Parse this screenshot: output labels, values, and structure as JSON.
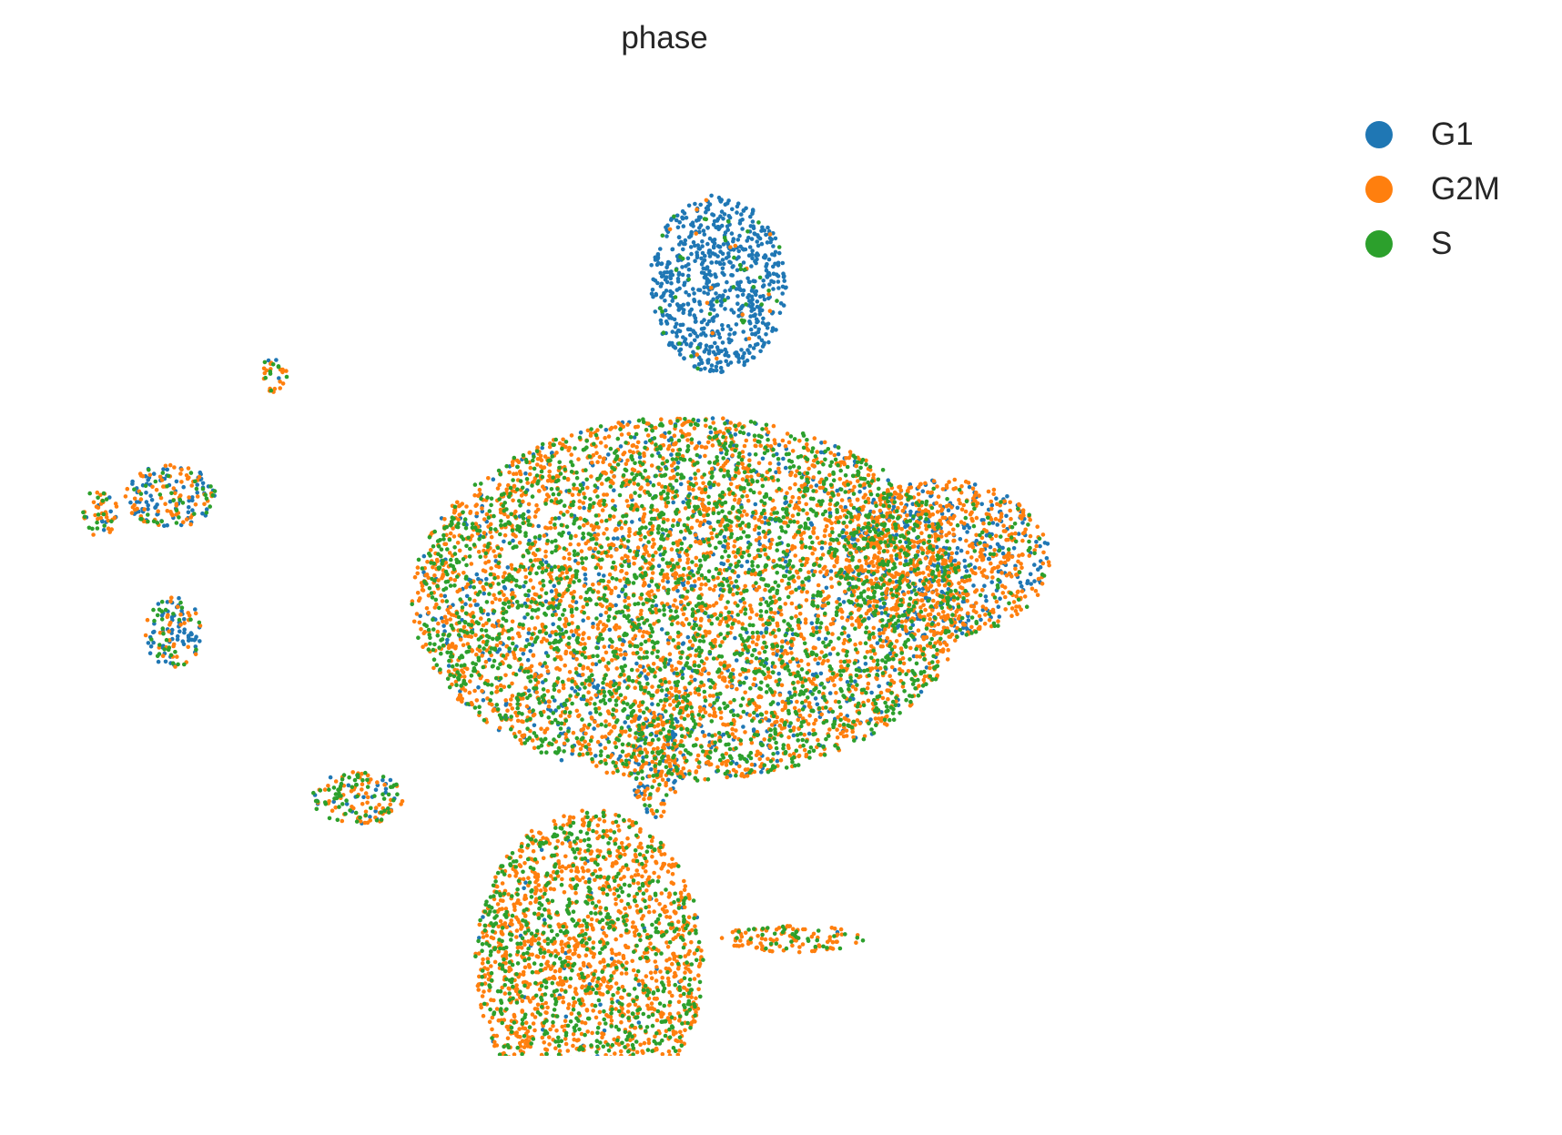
{
  "chart_data": {
    "type": "scatter",
    "title": "phase",
    "xlabel": "",
    "ylabel": "",
    "axes_visible": false,
    "grid": false,
    "legend_position": "top-right",
    "xlim": [
      0,
      1000
    ],
    "ylim": [
      0,
      640
    ],
    "series": [
      {
        "name": "G1",
        "color": "#1f77b4"
      },
      {
        "name": "G2M",
        "color": "#ff7f0e"
      },
      {
        "name": "S",
        "color": "#2ca02c"
      }
    ],
    "clusters": [
      {
        "id": "top-right-blob",
        "center": [
          537,
          522
        ],
        "radius": [
          57,
          60
        ],
        "mix": [
          0.92,
          0.03,
          0.05
        ]
      },
      {
        "id": "large-central",
        "center": [
          512,
          309
        ],
        "radius": [
          230,
          123
        ],
        "mix": [
          0.12,
          0.48,
          0.4
        ]
      },
      {
        "id": "right-arm",
        "center": [
          723,
          336
        ],
        "radius": [
          90,
          54
        ],
        "mix": [
          0.3,
          0.58,
          0.12
        ]
      },
      {
        "id": "bottom-blob",
        "center": [
          430,
          63
        ],
        "radius": [
          95,
          104
        ],
        "mix": [
          0.02,
          0.62,
          0.36
        ]
      },
      {
        "id": "bottom-right-strip",
        "center": [
          599,
          79
        ],
        "radius": [
          62,
          9
        ],
        "mix": [
          0.02,
          0.72,
          0.26
        ]
      },
      {
        "id": "left-cluster-upper",
        "center": [
          81,
          378
        ],
        "radius": [
          38,
          22
        ],
        "mix": [
          0.45,
          0.35,
          0.2
        ]
      },
      {
        "id": "left-cluster-lower",
        "center": [
          84,
          286
        ],
        "radius": [
          24,
          24
        ],
        "mix": [
          0.45,
          0.3,
          0.25
        ]
      },
      {
        "id": "left-edge",
        "center": [
          22,
          367
        ],
        "radius": [
          15,
          16
        ],
        "mix": [
          0.15,
          0.5,
          0.35
        ]
      },
      {
        "id": "mid-left-small",
        "center": [
          237,
          174
        ],
        "radius": [
          38,
          18
        ],
        "mix": [
          0.15,
          0.45,
          0.4
        ]
      },
      {
        "id": "top-left-sliver",
        "center": [
          168,
          461
        ],
        "radius": [
          11,
          13
        ],
        "mix": [
          0.1,
          0.6,
          0.3
        ]
      },
      {
        "id": "connector-trail",
        "center": [
          485,
          196
        ],
        "radius": [
          20,
          35
        ],
        "mix": [
          0.35,
          0.55,
          0.1
        ]
      }
    ]
  }
}
